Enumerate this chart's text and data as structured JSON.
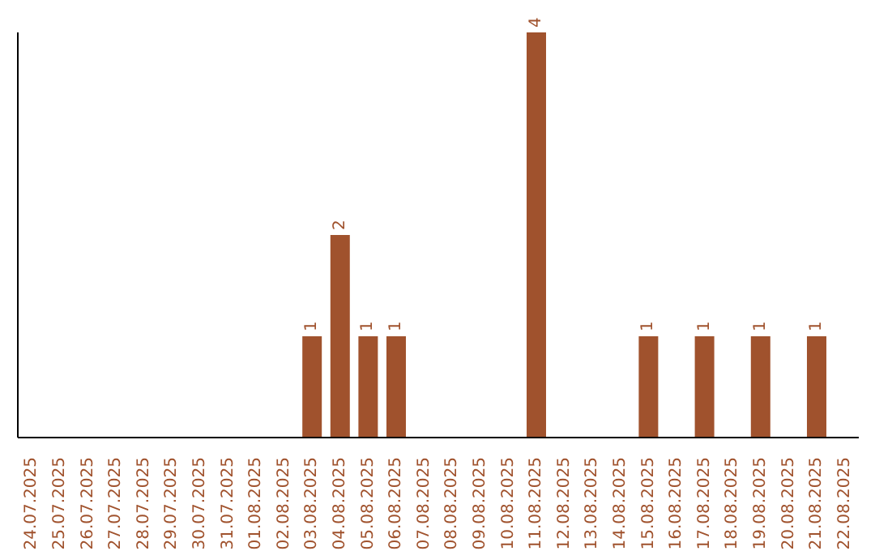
{
  "chart_data": {
    "type": "bar",
    "categories": [
      "24.07.2025",
      "25.07.2025",
      "26.07.2025",
      "27.07.2025",
      "28.07.2025",
      "29.07.2025",
      "30.07.2025",
      "31.07.2025",
      "01.08.2025",
      "02.08.2025",
      "03.08.2025",
      "04.08.2025",
      "05.08.2025",
      "06.08.2025",
      "07.08.2025",
      "08.08.2025",
      "09.08.2025",
      "10.08.2025",
      "11.08.2025",
      "12.08.2025",
      "13.08.2025",
      "14.08.2025",
      "15.08.2025",
      "16.08.2025",
      "17.08.2025",
      "18.08.2025",
      "19.08.2025",
      "20.08.2025",
      "21.08.2025",
      "22.08.2025"
    ],
    "values": [
      0,
      0,
      0,
      0,
      0,
      0,
      0,
      0,
      0,
      0,
      1,
      2,
      1,
      1,
      0,
      0,
      0,
      0,
      4,
      0,
      0,
      0,
      1,
      0,
      1,
      0,
      1,
      0,
      1,
      0
    ],
    "value_labels": [
      null,
      null,
      null,
      null,
      null,
      null,
      null,
      null,
      null,
      null,
      "1",
      "2",
      "1",
      "1",
      null,
      null,
      null,
      null,
      "4",
      null,
      null,
      null,
      "1",
      null,
      "1",
      null,
      "1",
      null,
      "1",
      null
    ],
    "color": "#a0522d"
  }
}
